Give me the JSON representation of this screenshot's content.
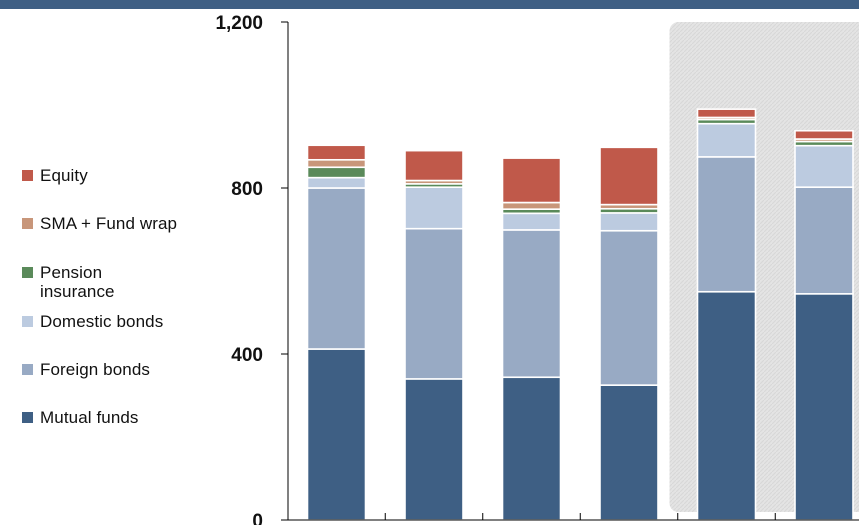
{
  "chart_data": {
    "type": "bar",
    "stacked": true,
    "categories": [
      "",
      "",
      "",
      "",
      "",
      ""
    ],
    "series": [
      {
        "name": "Mutual funds",
        "color": "#3e5f84",
        "values": [
          412,
          340,
          344,
          325,
          550,
          545
        ]
      },
      {
        "name": "Foreign bonds",
        "color": "#98aac4",
        "values": [
          388,
          362,
          355,
          372,
          325,
          257
        ]
      },
      {
        "name": "Domestic bonds",
        "color": "#bccbe0",
        "values": [
          25,
          100,
          40,
          43,
          80,
          100
        ]
      },
      {
        "name": "Pension insurance",
        "color": "#5a8a5a",
        "values": [
          25,
          8,
          10,
          10,
          10,
          10
        ]
      },
      {
        "name": "SMA + Fund wrap",
        "color": "#c8967a",
        "values": [
          18,
          8,
          16,
          10,
          5,
          6
        ]
      },
      {
        "name": "Equity",
        "color": "#c0594a",
        "values": [
          35,
          72,
          107,
          138,
          20,
          20
        ]
      }
    ],
    "y_ticks": [
      "0",
      "400",
      "800",
      "1,200"
    ],
    "ylim": [
      0,
      1200
    ],
    "highlight_bars": [
      4,
      5
    ],
    "xlabel": "",
    "ylabel": ""
  }
}
